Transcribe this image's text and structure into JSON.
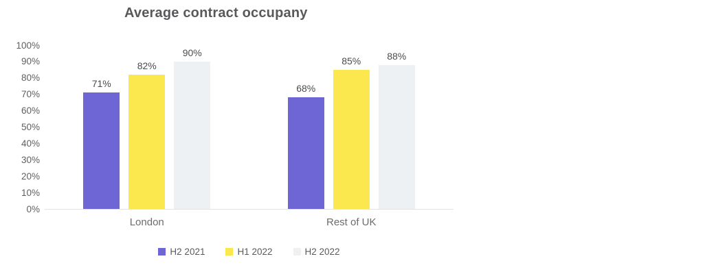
{
  "chart_data": {
    "type": "bar",
    "title": "Average contract occupany",
    "categories": [
      "London",
      "Rest of UK"
    ],
    "series": [
      {
        "name": "H2 2021",
        "color": "#6E66D4",
        "values": [
          71,
          68
        ]
      },
      {
        "name": "H1 2022",
        "color": "#FBE84E",
        "values": [
          82,
          85
        ]
      },
      {
        "name": "H2 2022",
        "color": "#EEF1F4",
        "values": [
          90,
          88
        ]
      }
    ],
    "value_suffix": "%",
    "data_labels": [
      "71%",
      "82%",
      "90%",
      "68%",
      "85%",
      "88%"
    ],
    "xlabel": "",
    "ylabel": "",
    "ylim": [
      0,
      100
    ],
    "ytick_step": 10,
    "ytick_labels": [
      "0%",
      "10%",
      "20%",
      "30%",
      "40%",
      "50%",
      "60%",
      "70%",
      "80%",
      "90%",
      "100%"
    ],
    "grid": false,
    "legend_position": "bottom",
    "axis_line_color": "#e1e3e6"
  }
}
